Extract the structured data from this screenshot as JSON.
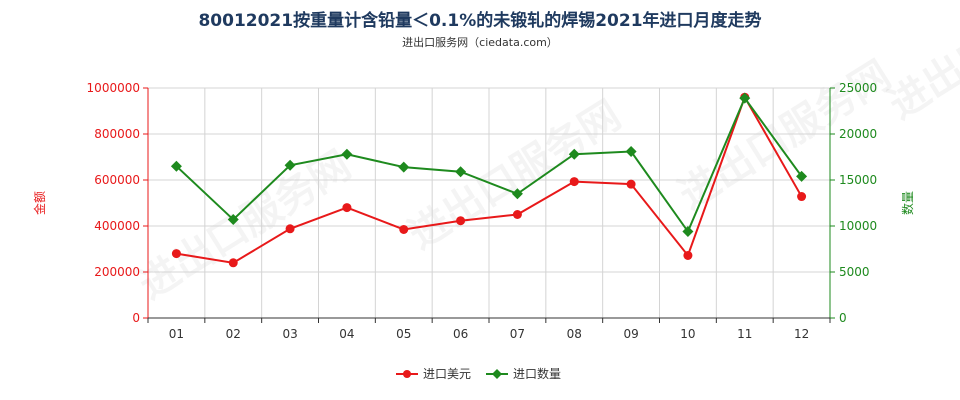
{
  "chart_data": {
    "type": "line",
    "title": "80012021按重量计含铅量＜0.1%的未锻轧的焊锡2021年进口月度走势",
    "subtitle": "进出口服务网（ciedata.com）",
    "categories": [
      "01",
      "02",
      "03",
      "04",
      "05",
      "06",
      "07",
      "08",
      "09",
      "10",
      "11",
      "12"
    ],
    "y_left": {
      "label": "金额",
      "range": [
        0,
        1000000
      ],
      "ticks": [
        "0",
        "200000",
        "400000",
        "600000",
        "800000",
        "1000000"
      ]
    },
    "y_right": {
      "label": "数量",
      "range": [
        0,
        25000
      ],
      "ticks": [
        "0",
        "5000",
        "10000",
        "15000",
        "20000",
        "25000"
      ]
    },
    "series": [
      {
        "name": "进口美元",
        "axis": "left",
        "color": "#e8191a",
        "marker": "circle",
        "values": [
          280000,
          240000,
          388000,
          480000,
          385000,
          423000,
          450000,
          593000,
          582000,
          272000,
          960000,
          528000
        ]
      },
      {
        "name": "进口数量",
        "axis": "right",
        "color": "#1e8a1e",
        "marker": "diamond",
        "values": [
          16500,
          10700,
          16600,
          17800,
          16400,
          15900,
          13500,
          17800,
          18100,
          9400,
          23900,
          15400
        ]
      }
    ],
    "grid": true,
    "legend_position": "bottom"
  },
  "watermark": "进出口服务网"
}
